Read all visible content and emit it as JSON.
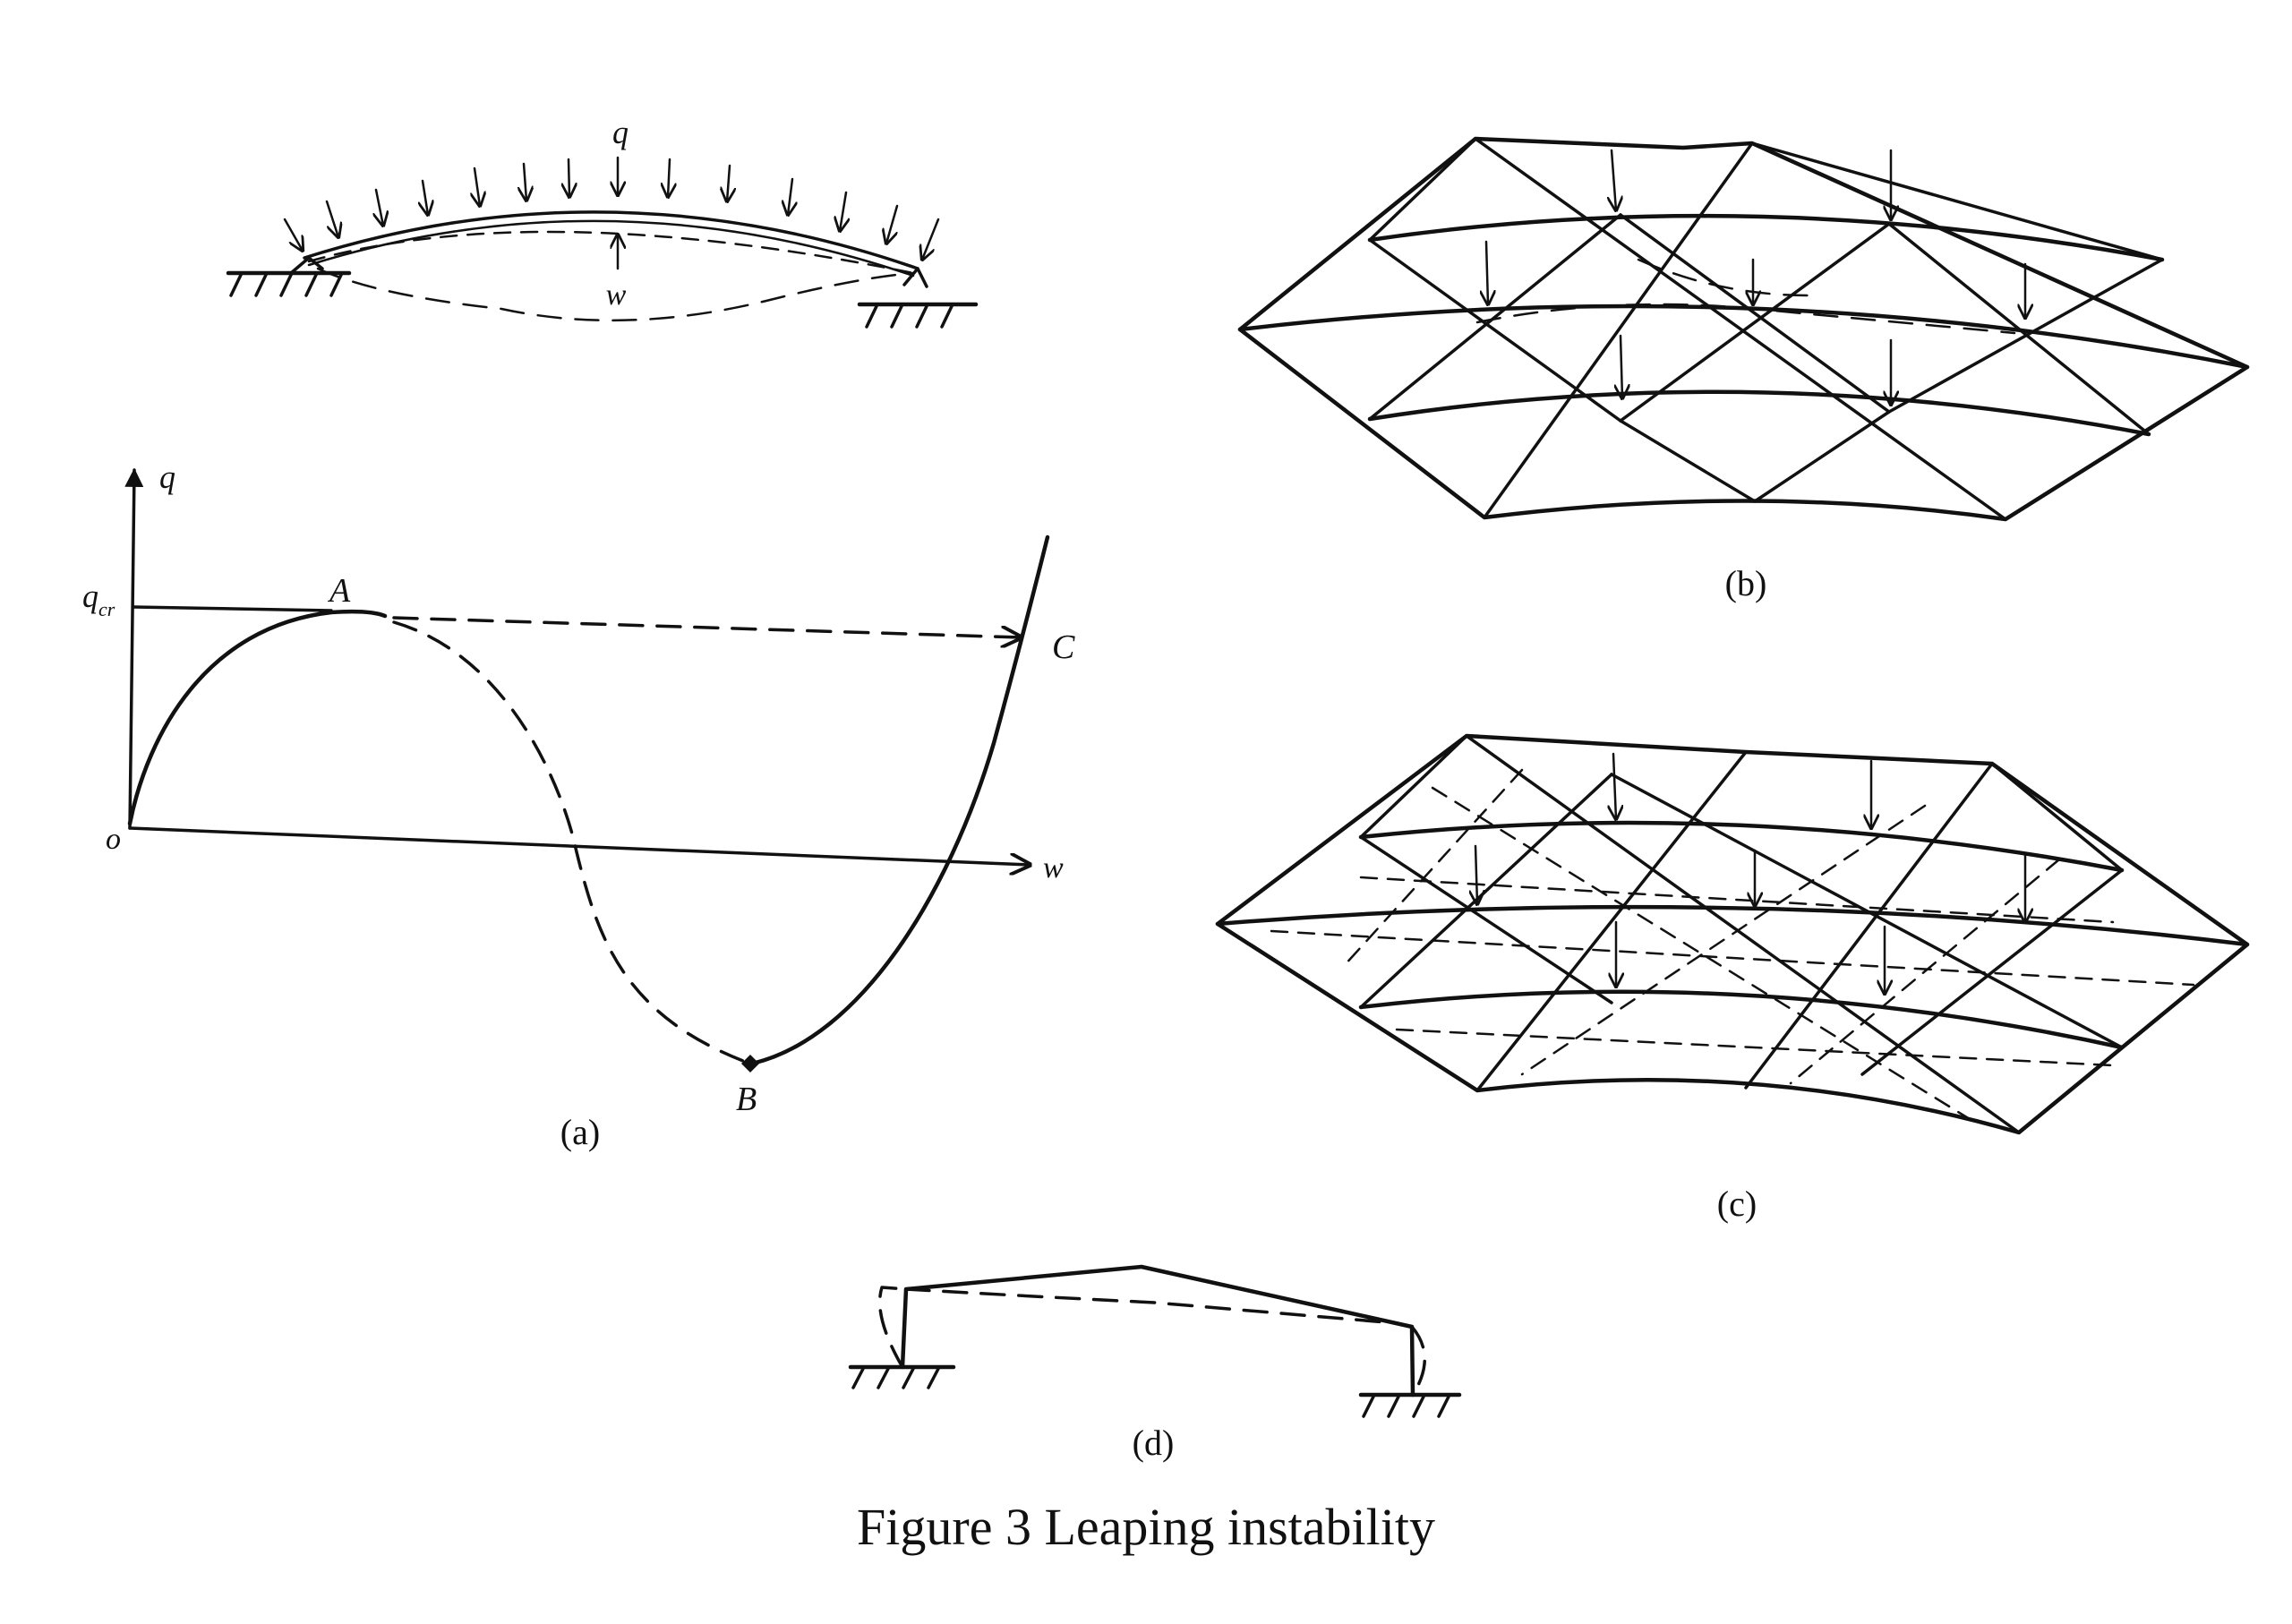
{
  "panel_a": {
    "load_label": "q",
    "deflection_label": "w",
    "axis_y_label": "q",
    "axis_x_label": "w",
    "origin_label": "o",
    "qcr_main": "q",
    "qcr_sub": "cr",
    "point_a": "A",
    "point_b": "B",
    "point_c": "C",
    "caption": "(a)"
  },
  "panel_b": {
    "caption": "(b)"
  },
  "panel_c": {
    "caption": "(c)"
  },
  "panel_d": {
    "caption": "(d)"
  },
  "figure_caption": "Figure 3 Leaping instability"
}
